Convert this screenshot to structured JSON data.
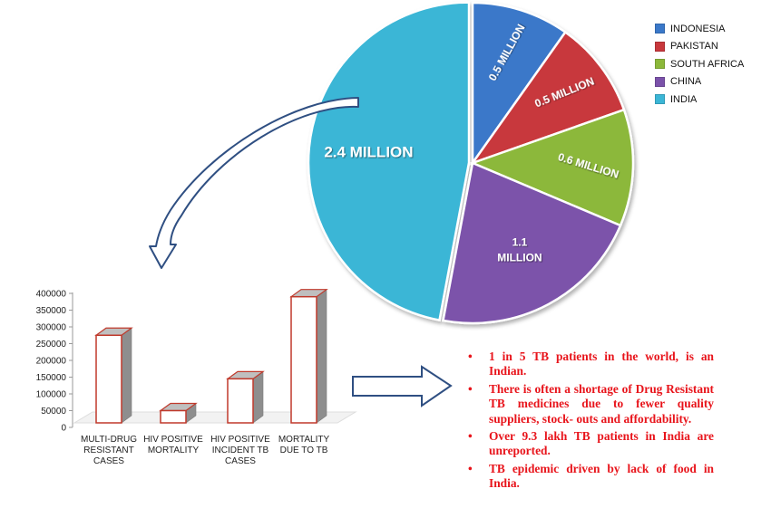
{
  "chart_data": [
    {
      "type": "pie",
      "categories": [
        "INDONESIA",
        "PAKISTAN",
        "SOUTH AFRICA",
        "CHINA",
        "INDIA"
      ],
      "values": [
        0.5,
        0.5,
        0.6,
        1.1,
        2.4
      ],
      "labels": [
        "0.5 MILLION",
        "0.5 MILLION",
        "0.6 MILLION",
        "1.1 MILLION",
        "2.4 MILLION"
      ],
      "colors": [
        "#3a78c9",
        "#c8383c",
        "#8cb83a",
        "#7b52aa",
        "#3bb6d6"
      ],
      "legend": "top-right"
    },
    {
      "type": "bar",
      "categories": [
        "MULTI-DRUG RESISTANT CASES",
        "HIV POSITIVE MORTALITY",
        "HIV POSITIVE INCIDENT TB CASES",
        "MORTALITY DUE TO TB"
      ],
      "values": [
        275000,
        50000,
        145000,
        390000
      ],
      "ylim": [
        0,
        400000
      ],
      "yticks": [
        "0",
        "50000",
        "100000",
        "150000",
        "200000",
        "250000",
        "300000",
        "350000",
        "400000"
      ]
    }
  ],
  "bullets": [
    "1 in 5 TB patients in the world, is an Indian.",
    "There is often a shortage of Drug Resistant TB medicines due to fewer quality suppliers, stock- outs and affordability.",
    "Over 9.3 lakh TB patients in India are unreported.",
    "TB epidemic driven by lack of food in India."
  ]
}
